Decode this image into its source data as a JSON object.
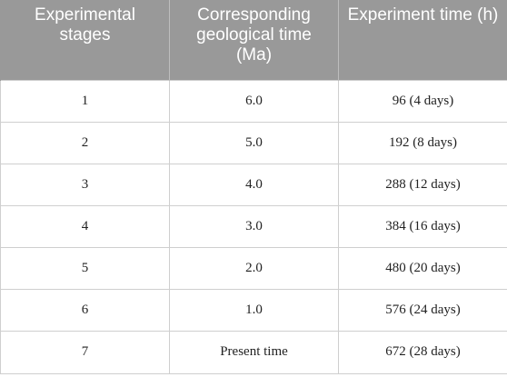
{
  "table": {
    "headers": [
      "Experimental stages",
      "Corresponding geological time (Ma)",
      "Experiment time (h)"
    ],
    "rows": [
      [
        "1",
        "6.0",
        "96 (4 days)"
      ],
      [
        "2",
        "5.0",
        "192 (8 days)"
      ],
      [
        "3",
        "4.0",
        "288 (12 days)"
      ],
      [
        "4",
        "3.0",
        "384 (16 days)"
      ],
      [
        "5",
        "2.0",
        "480 (20 days)"
      ],
      [
        "6",
        "1.0",
        "576 (24 days)"
      ],
      [
        "7",
        "Present time",
        "672 (28 days)"
      ]
    ]
  },
  "colors": {
    "header_background": "#999999",
    "header_text": "#ffffff",
    "grid_line": "#cfcfcf"
  }
}
